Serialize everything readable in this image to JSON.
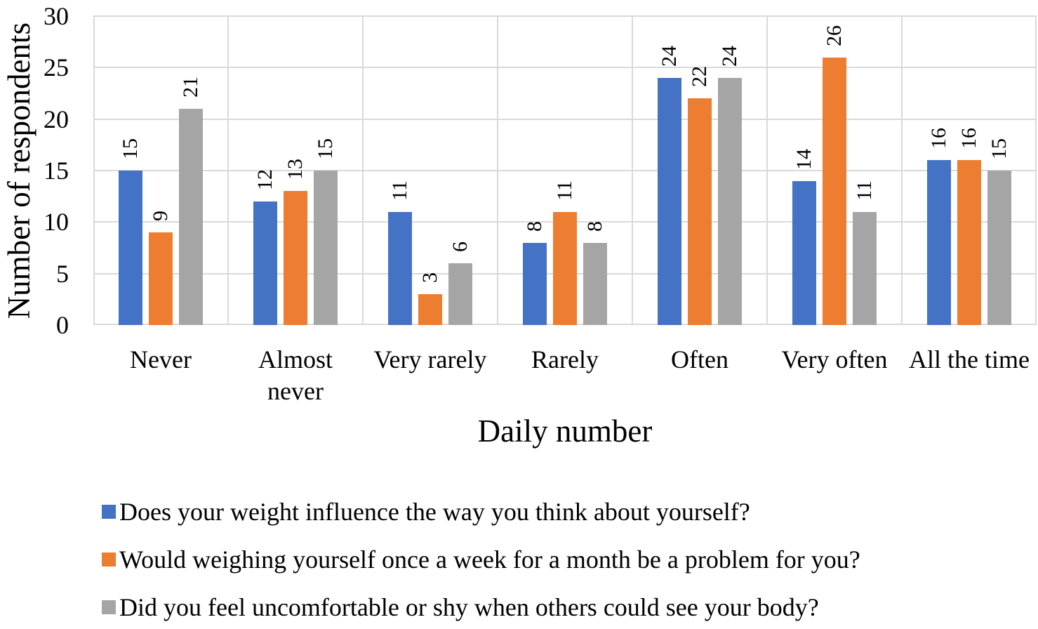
{
  "chart_data": {
    "type": "bar",
    "title": "",
    "xlabel": "Daily number",
    "ylabel": "Number of respondents",
    "categories": [
      "Never",
      "Almost\nnever",
      "Very rarely",
      "Rarely",
      "Often",
      "Very often",
      "All the time"
    ],
    "series": [
      {
        "name": "Does your weight influence the way you think about yourself?",
        "color": "#4472C4",
        "values": [
          15,
          12,
          11,
          8,
          24,
          14,
          16
        ]
      },
      {
        "name": "Would weighing yourself once a week for a month be a problem for you?",
        "color": "#ED7D31",
        "values": [
          9,
          13,
          3,
          11,
          22,
          26,
          16
        ]
      },
      {
        "name": "Did you feel uncomfortable or shy when others could see your body?",
        "color": "#A5A5A5",
        "values": [
          21,
          15,
          6,
          8,
          24,
          11,
          15
        ]
      }
    ],
    "yticks": [
      0,
      5,
      10,
      15,
      20,
      25,
      30
    ],
    "ylim": [
      0,
      30
    ],
    "grid": true,
    "gridline_color": "#D9D9D9",
    "data_labels": "rotated-90-up",
    "legend_position": "bottom-left"
  }
}
